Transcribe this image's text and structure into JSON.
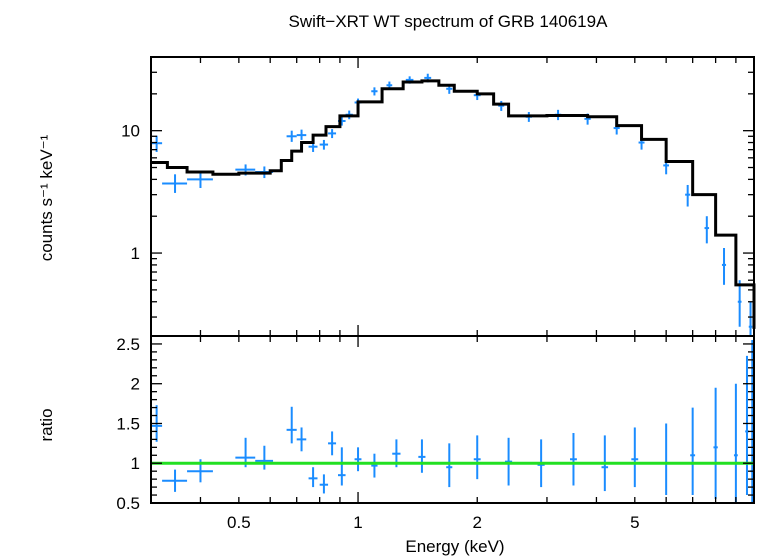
{
  "chart_data": [
    {
      "type": "scatter",
      "panel": "spectrum",
      "title": "Swift−XRT WT spectrum of GRB 140619A",
      "xlabel": "",
      "ylabel": "counts s⁻¹ keV⁻¹",
      "xscale": "log",
      "yscale": "log",
      "xlim": [
        0.3,
        10
      ],
      "ylim": [
        0.21,
        40
      ],
      "ytick_labels": [
        {
          "value": 1,
          "label": "1"
        },
        {
          "value": 10,
          "label": "10"
        }
      ],
      "series": [
        {
          "kind": "data with error bars",
          "color": "#1a8cff",
          "points": [
            {
              "x": 0.31,
              "xlo": 0.3,
              "xhi": 0.32,
              "y": 7.9,
              "ylo": 6.7,
              "yhi": 9.1
            },
            {
              "x": 0.345,
              "xlo": 0.32,
              "xhi": 0.37,
              "y": 3.7,
              "ylo": 3.1,
              "yhi": 4.4
            },
            {
              "x": 0.4,
              "xlo": 0.37,
              "xhi": 0.43,
              "y": 4.0,
              "ylo": 3.4,
              "yhi": 4.6
            },
            {
              "x": 0.52,
              "xlo": 0.49,
              "xhi": 0.55,
              "y": 4.8,
              "ylo": 4.3,
              "yhi": 5.3
            },
            {
              "x": 0.58,
              "xlo": 0.55,
              "xhi": 0.61,
              "y": 4.6,
              "ylo": 4.1,
              "yhi": 5.1
            },
            {
              "x": 0.68,
              "xlo": 0.66,
              "xhi": 0.7,
              "y": 9.0,
              "ylo": 8.1,
              "yhi": 10.0
            },
            {
              "x": 0.72,
              "xlo": 0.7,
              "xhi": 0.74,
              "y": 9.2,
              "ylo": 8.4,
              "yhi": 10.2
            },
            {
              "x": 0.77,
              "xlo": 0.75,
              "xhi": 0.79,
              "y": 7.4,
              "ylo": 6.7,
              "yhi": 8.2
            },
            {
              "x": 0.82,
              "xlo": 0.8,
              "xhi": 0.84,
              "y": 7.7,
              "ylo": 7.0,
              "yhi": 8.4
            },
            {
              "x": 0.86,
              "xlo": 0.84,
              "xhi": 0.88,
              "y": 9.5,
              "ylo": 8.7,
              "yhi": 10.3
            },
            {
              "x": 0.91,
              "xlo": 0.89,
              "xhi": 0.93,
              "y": 12.0,
              "ylo": 11.0,
              "yhi": 13.0
            },
            {
              "x": 0.95,
              "xlo": 0.93,
              "xhi": 0.97,
              "y": 13.5,
              "ylo": 12.4,
              "yhi": 14.6
            },
            {
              "x": 1.0,
              "xlo": 0.98,
              "xhi": 1.02,
              "y": 17.0,
              "ylo": 15.7,
              "yhi": 18.3
            },
            {
              "x": 1.1,
              "xlo": 1.08,
              "xhi": 1.12,
              "y": 21.0,
              "ylo": 19.4,
              "yhi": 22.6
            },
            {
              "x": 1.2,
              "xlo": 1.18,
              "xhi": 1.22,
              "y": 23.5,
              "ylo": 21.8,
              "yhi": 25.2
            },
            {
              "x": 1.35,
              "xlo": 1.32,
              "xhi": 1.38,
              "y": 26.0,
              "ylo": 24.2,
              "yhi": 27.8
            },
            {
              "x": 1.5,
              "xlo": 1.47,
              "xhi": 1.53,
              "y": 27.0,
              "ylo": 24.8,
              "yhi": 29.2
            },
            {
              "x": 1.7,
              "xlo": 1.67,
              "xhi": 1.73,
              "y": 22.0,
              "ylo": 20.0,
              "yhi": 24.0
            },
            {
              "x": 2.0,
              "xlo": 1.96,
              "xhi": 2.04,
              "y": 19.5,
              "ylo": 17.8,
              "yhi": 21.2
            },
            {
              "x": 2.3,
              "xlo": 2.26,
              "xhi": 2.34,
              "y": 16.0,
              "ylo": 14.5,
              "yhi": 17.5
            },
            {
              "x": 2.7,
              "xlo": 2.65,
              "xhi": 2.75,
              "y": 13.0,
              "ylo": 11.8,
              "yhi": 14.2
            },
            {
              "x": 3.2,
              "xlo": 3.14,
              "xhi": 3.26,
              "y": 13.5,
              "ylo": 12.2,
              "yhi": 14.8
            },
            {
              "x": 3.8,
              "xlo": 3.73,
              "xhi": 3.87,
              "y": 12.5,
              "ylo": 11.2,
              "yhi": 13.8
            },
            {
              "x": 4.5,
              "xlo": 4.42,
              "xhi": 4.58,
              "y": 10.5,
              "ylo": 9.3,
              "yhi": 11.7
            },
            {
              "x": 5.2,
              "xlo": 5.11,
              "xhi": 5.29,
              "y": 8.0,
              "ylo": 7.0,
              "yhi": 9.0
            },
            {
              "x": 6.0,
              "xlo": 5.9,
              "xhi": 6.1,
              "y": 5.2,
              "ylo": 4.4,
              "yhi": 6.0
            },
            {
              "x": 6.8,
              "xlo": 6.7,
              "xhi": 6.9,
              "y": 3.0,
              "ylo": 2.4,
              "yhi": 3.6
            },
            {
              "x": 7.6,
              "xlo": 7.5,
              "xhi": 7.7,
              "y": 1.6,
              "ylo": 1.2,
              "yhi": 2.0
            },
            {
              "x": 8.4,
              "xlo": 8.3,
              "xhi": 8.5,
              "y": 0.8,
              "ylo": 0.55,
              "yhi": 1.1
            },
            {
              "x": 9.2,
              "xlo": 9.1,
              "xhi": 9.3,
              "y": 0.4,
              "ylo": 0.25,
              "yhi": 0.6
            },
            {
              "x": 9.8,
              "xlo": 9.7,
              "xhi": 9.9,
              "y": 0.25,
              "ylo": 0.21,
              "yhi": 0.4
            }
          ]
        },
        {
          "kind": "model (step)",
          "color": "#000000",
          "points": [
            {
              "x": 0.3,
              "y": 5.5
            },
            {
              "x": 0.33,
              "y": 5.0
            },
            {
              "x": 0.37,
              "y": 4.6
            },
            {
              "x": 0.43,
              "y": 4.4
            },
            {
              "x": 0.5,
              "y": 4.5
            },
            {
              "x": 0.6,
              "y": 4.7
            },
            {
              "x": 0.64,
              "y": 5.7
            },
            {
              "x": 0.68,
              "y": 6.8
            },
            {
              "x": 0.72,
              "y": 8.0
            },
            {
              "x": 0.77,
              "y": 9.2
            },
            {
              "x": 0.83,
              "y": 10.8
            },
            {
              "x": 0.9,
              "y": 13.2
            },
            {
              "x": 1.0,
              "y": 17.2
            },
            {
              "x": 1.15,
              "y": 22.0
            },
            {
              "x": 1.3,
              "y": 25.0
            },
            {
              "x": 1.45,
              "y": 25.5
            },
            {
              "x": 1.6,
              "y": 23.5
            },
            {
              "x": 1.75,
              "y": 21.0
            },
            {
              "x": 2.0,
              "y": 20.0
            },
            {
              "x": 2.2,
              "y": 16.5
            },
            {
              "x": 2.4,
              "y": 13.2
            },
            {
              "x": 3.0,
              "y": 13.3
            },
            {
              "x": 3.8,
              "y": 13.0
            },
            {
              "x": 4.5,
              "y": 11.0
            },
            {
              "x": 5.2,
              "y": 8.5
            },
            {
              "x": 6.0,
              "y": 5.6
            },
            {
              "x": 7.0,
              "y": 3.0
            },
            {
              "x": 8.0,
              "y": 1.4
            },
            {
              "x": 9.0,
              "y": 0.55
            },
            {
              "x": 10.0,
              "y": 0.24
            }
          ]
        }
      ]
    },
    {
      "type": "scatter",
      "panel": "ratio",
      "xlabel": "Energy (keV)",
      "ylabel": "ratio",
      "xscale": "log",
      "yscale": "linear",
      "xlim": [
        0.3,
        10
      ],
      "ylim": [
        0.5,
        2.6
      ],
      "xtick_labels": [
        {
          "value": 0.5,
          "label": "0.5"
        },
        {
          "value": 1,
          "label": "1"
        },
        {
          "value": 2,
          "label": "2"
        },
        {
          "value": 5,
          "label": "5"
        }
      ],
      "ytick_labels": [
        {
          "value": 0.5,
          "label": "0.5"
        },
        {
          "value": 1,
          "label": "1"
        },
        {
          "value": 1.5,
          "label": "1.5"
        },
        {
          "value": 2,
          "label": "2"
        },
        {
          "value": 2.5,
          "label": "2.5"
        }
      ],
      "reference_line": {
        "y": 1,
        "color": "#22e022"
      },
      "series": [
        {
          "kind": "data with error bars",
          "color": "#1a8cff",
          "points": [
            {
              "x": 0.31,
              "xlo": 0.3,
              "xhi": 0.32,
              "y": 1.47,
              "ylo": 1.27,
              "yhi": 1.73
            },
            {
              "x": 0.345,
              "xlo": 0.32,
              "xhi": 0.37,
              "y": 0.78,
              "ylo": 0.64,
              "yhi": 0.92
            },
            {
              "x": 0.4,
              "xlo": 0.37,
              "xhi": 0.43,
              "y": 0.9,
              "ylo": 0.76,
              "yhi": 1.05
            },
            {
              "x": 0.52,
              "xlo": 0.49,
              "xhi": 0.55,
              "y": 1.07,
              "ylo": 0.95,
              "yhi": 1.32
            },
            {
              "x": 0.58,
              "xlo": 0.55,
              "xhi": 0.61,
              "y": 1.03,
              "ylo": 0.92,
              "yhi": 1.22
            },
            {
              "x": 0.68,
              "xlo": 0.66,
              "xhi": 0.7,
              "y": 1.42,
              "ylo": 1.25,
              "yhi": 1.71
            },
            {
              "x": 0.72,
              "xlo": 0.7,
              "xhi": 0.74,
              "y": 1.3,
              "ylo": 1.15,
              "yhi": 1.45
            },
            {
              "x": 0.77,
              "xlo": 0.75,
              "xhi": 0.79,
              "y": 0.81,
              "ylo": 0.7,
              "yhi": 0.95
            },
            {
              "x": 0.82,
              "xlo": 0.8,
              "xhi": 0.84,
              "y": 0.73,
              "ylo": 0.62,
              "yhi": 0.86
            },
            {
              "x": 0.86,
              "xlo": 0.84,
              "xhi": 0.88,
              "y": 1.25,
              "ylo": 1.1,
              "yhi": 1.4
            },
            {
              "x": 0.91,
              "xlo": 0.89,
              "xhi": 0.93,
              "y": 0.85,
              "ylo": 0.72,
              "yhi": 1.2
            },
            {
              "x": 1.0,
              "xlo": 0.98,
              "xhi": 1.02,
              "y": 1.05,
              "ylo": 0.9,
              "yhi": 1.2
            },
            {
              "x": 1.1,
              "xlo": 1.08,
              "xhi": 1.12,
              "y": 0.97,
              "ylo": 0.82,
              "yhi": 1.12
            },
            {
              "x": 1.25,
              "xlo": 1.22,
              "xhi": 1.28,
              "y": 1.12,
              "ylo": 0.95,
              "yhi": 1.3
            },
            {
              "x": 1.45,
              "xlo": 1.42,
              "xhi": 1.48,
              "y": 1.08,
              "ylo": 0.88,
              "yhi": 1.3
            },
            {
              "x": 1.7,
              "xlo": 1.67,
              "xhi": 1.73,
              "y": 0.95,
              "ylo": 0.7,
              "yhi": 1.25
            },
            {
              "x": 2.0,
              "xlo": 1.96,
              "xhi": 2.04,
              "y": 1.05,
              "ylo": 0.8,
              "yhi": 1.35
            },
            {
              "x": 2.4,
              "xlo": 2.35,
              "xhi": 2.45,
              "y": 1.02,
              "ylo": 0.72,
              "yhi": 1.32
            },
            {
              "x": 2.9,
              "xlo": 2.84,
              "xhi": 2.96,
              "y": 0.98,
              "ylo": 0.7,
              "yhi": 1.3
            },
            {
              "x": 3.5,
              "xlo": 3.43,
              "xhi": 3.57,
              "y": 1.05,
              "ylo": 0.72,
              "yhi": 1.38
            },
            {
              "x": 4.2,
              "xlo": 4.12,
              "xhi": 4.28,
              "y": 0.95,
              "ylo": 0.65,
              "yhi": 1.35
            },
            {
              "x": 5.0,
              "xlo": 4.9,
              "xhi": 5.1,
              "y": 1.05,
              "ylo": 0.7,
              "yhi": 1.45
            },
            {
              "x": 6.0,
              "xlo": 5.9,
              "xhi": 6.1,
              "y": 1.0,
              "ylo": 0.6,
              "yhi": 1.5
            },
            {
              "x": 7.0,
              "xlo": 6.9,
              "xhi": 7.1,
              "y": 1.1,
              "ylo": 0.6,
              "yhi": 1.7
            },
            {
              "x": 8.0,
              "xlo": 7.9,
              "xhi": 8.1,
              "y": 1.2,
              "ylo": 0.55,
              "yhi": 1.95
            },
            {
              "x": 9.0,
              "xlo": 8.9,
              "xhi": 9.1,
              "y": 1.1,
              "ylo": 0.5,
              "yhi": 2.0
            },
            {
              "x": 9.6,
              "xlo": 9.5,
              "xhi": 9.7,
              "y": 1.4,
              "ylo": 0.6,
              "yhi": 2.35
            },
            {
              "x": 9.9,
              "xlo": 9.8,
              "xhi": 10.0,
              "y": 0.9,
              "ylo": 0.5,
              "yhi": 2.55
            }
          ]
        }
      ]
    }
  ]
}
